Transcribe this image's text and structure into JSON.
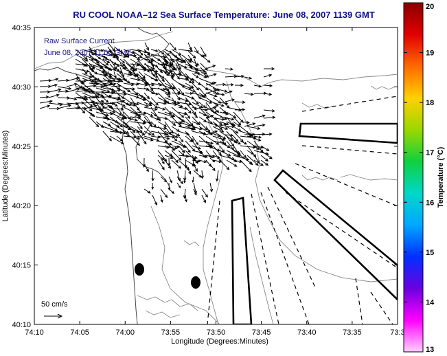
{
  "title": "RU COOL   NOAA–12  Sea Surface Temperature:  June 08, 2007 1139 GMT",
  "inset": {
    "line1": "Raw Surface Current",
    "line2": "June 08, 2007 11:00 GMT"
  },
  "scale_label": "50 cm/s",
  "xaxis": {
    "label": "Longitude (Degrees:Minutes)",
    "ticks": [
      "74:10",
      "74:05",
      "74:00",
      "73:55",
      "73:50",
      "73:45",
      "73:40",
      "73:35",
      "73:3"
    ]
  },
  "yaxis": {
    "label": "Latitude (Degrees:Minutes)",
    "ticks": [
      "40:35",
      "40:30",
      "40:25",
      "40:20",
      "40:15",
      "40:10"
    ]
  },
  "colorbar": {
    "label": "Temperature (°C)",
    "ticks": [
      "20",
      "19",
      "18",
      "17",
      "16",
      "15",
      "14",
      "13"
    ],
    "colors": [
      "#8a0000",
      "#e00000",
      "#ff6a00",
      "#ffd000",
      "#9ad800",
      "#10d040",
      "#00d8c8",
      "#00a8ff",
      "#0030ff",
      "#6a00e0",
      "#ff00ff",
      "#ffd0ff"
    ]
  }
}
